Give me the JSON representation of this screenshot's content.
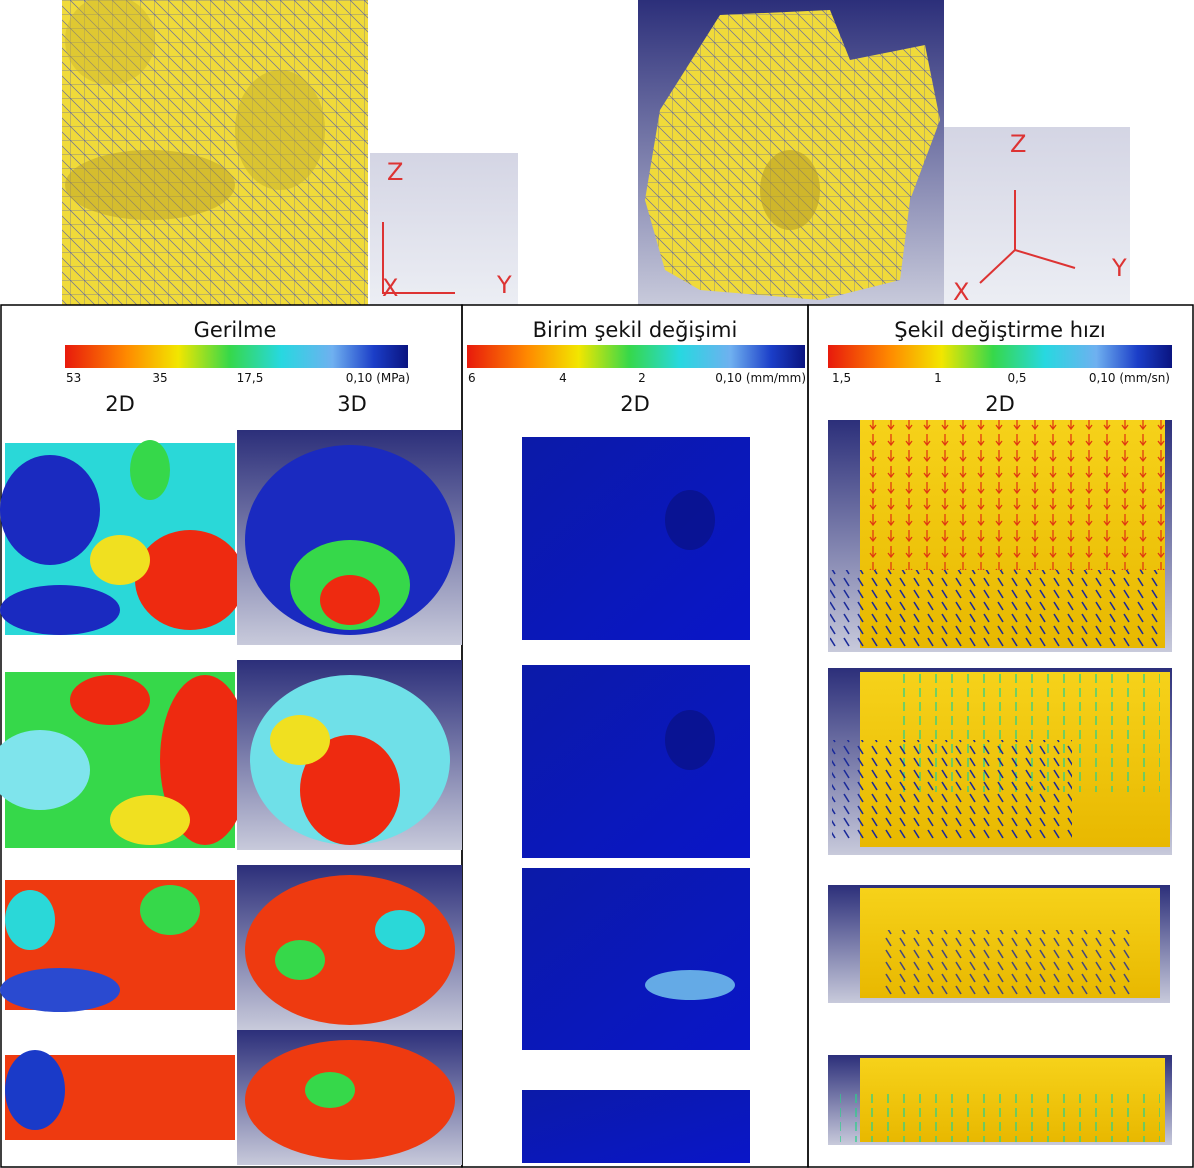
{
  "top": {
    "view_2d_axes": [
      "Z",
      "X",
      "Y"
    ],
    "view_3d_axes": [
      "Z",
      "X",
      "Y"
    ]
  },
  "panels": [
    {
      "title": "Gerilme",
      "scale_labels": [
        "53",
        "35",
        "17,5",
        "0,10 (MPa)"
      ],
      "columns": [
        "2D",
        "3D"
      ]
    },
    {
      "title": "Birim şekil değişimi",
      "scale_labels": [
        "6",
        "4",
        "2",
        "0,10 (mm/mm)"
      ],
      "columns": [
        "2D"
      ]
    },
    {
      "title": "Şekil değiştirme hızı",
      "scale_labels": [
        "1,5",
        "1",
        "0,5",
        "0,10  (mm/sn)"
      ],
      "columns": [
        "2D"
      ]
    }
  ]
}
